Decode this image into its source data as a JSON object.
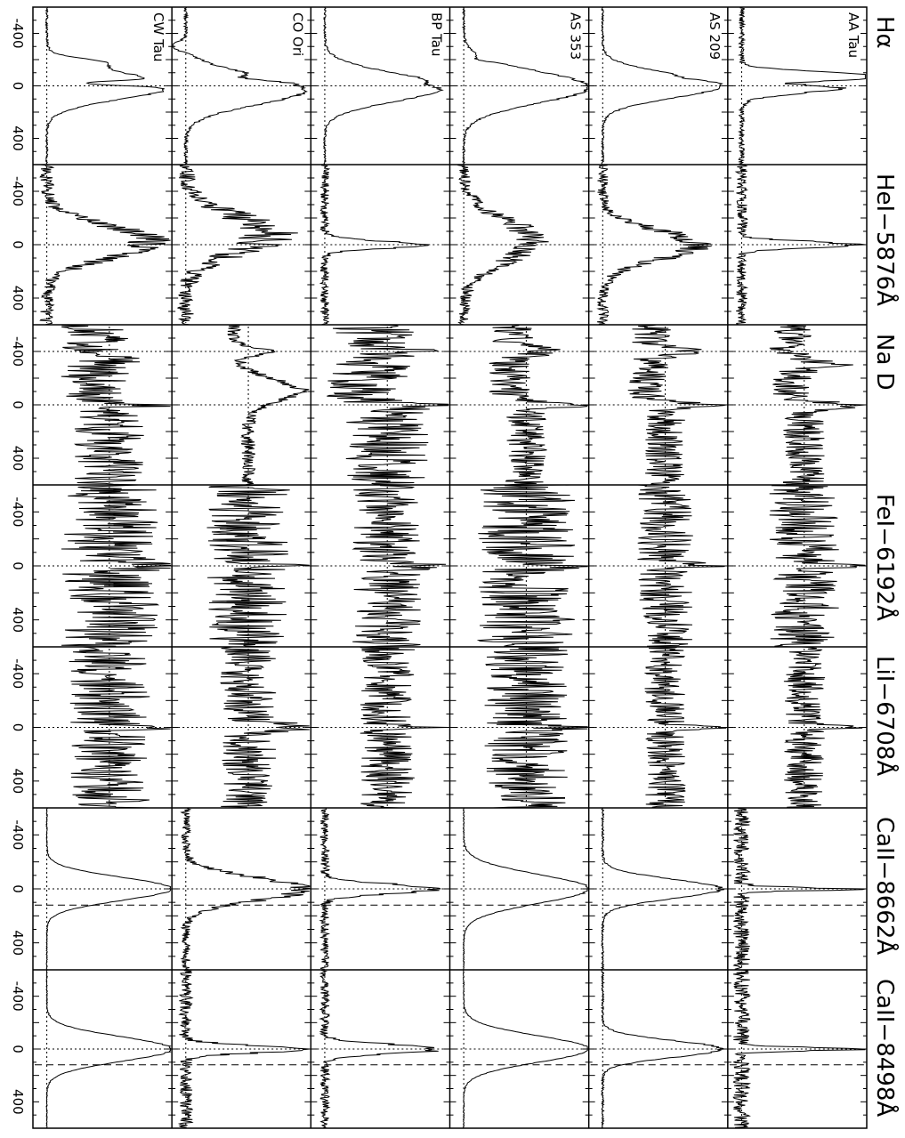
{
  "chart_data": {
    "type": "line",
    "orientation": "rotated-90",
    "x_tick_labels": [
      "-400",
      "0",
      "400"
    ],
    "x_ticks": [
      -400,
      0,
      400
    ],
    "xlim": [
      -600,
      600
    ],
    "x_unit": "",
    "stars": [
      "CW Tau",
      "CO Ori",
      "BP Tau",
      "AS 353",
      "AS 209",
      "AA Tau"
    ],
    "lines": [
      "Hα",
      "HeI−5876Å",
      "Na D",
      "FeI−6192Å",
      "LiI−6708Å",
      "CaII−8662Å",
      "CaII−8498Å"
    ],
    "reference_lines": {
      "zero_velocity": 0,
      "calcium_dashed_offset": 120
    },
    "line_profiles": {
      "Hα": {
        "CW Tau": {
          "kind": "emission",
          "peak": 1.0,
          "width": 140,
          "center": 0,
          "abs_depth": 0.6,
          "abs_at": -20,
          "wing_at": -180,
          "wing": 0.35,
          "noise": 0.02
        },
        "CO Ori": {
          "kind": "emission",
          "peak": 0.95,
          "width": 160,
          "center": 30,
          "abs_depth": 0.2,
          "abs_at": -60,
          "wing_at": -300,
          "wing": -0.3,
          "noise": 0.03
        },
        "BP Tau": {
          "kind": "emission",
          "peak": 0.95,
          "width": 150,
          "center": 10,
          "abs_depth": 0.1,
          "abs_at": -10,
          "wing_at": 0,
          "wing": 0,
          "noise": 0.02
        },
        "AS 353": {
          "kind": "emission",
          "peak": 1.0,
          "width": 170,
          "center": 10,
          "abs_depth": 0.1,
          "abs_at": -200,
          "wing_at": 0,
          "wing": 0,
          "noise": 0.02
        },
        "AS 209": {
          "kind": "emission",
          "peak": 0.95,
          "width": 130,
          "center": 0,
          "abs_depth": 0.1,
          "abs_at": -60,
          "wing_at": 0,
          "wing": 0,
          "noise": 0.02
        },
        "AA Tau": {
          "kind": "emission",
          "peak": 0.9,
          "width": 70,
          "center": 0,
          "abs_depth": 0.5,
          "abs_at": -20,
          "wing_at": -80,
          "wing": 0.85,
          "noise": 0.05
        }
      },
      "HeI−5876Å": {
        "CW Tau": {
          "kind": "emission",
          "peak": 0.85,
          "width": 170,
          "center": -20,
          "abs_depth": 0,
          "abs_at": 0,
          "wing_at": 0,
          "wing": 0,
          "noise": 0.12
        },
        "CO Ori": {
          "kind": "emission",
          "peak": 0.7,
          "width": 200,
          "center": -80,
          "abs_depth": 0,
          "abs_at": 0,
          "wing_at": 0,
          "wing": 0,
          "noise": 0.15
        },
        "BP Tau": {
          "kind": "emission",
          "peak": 0.8,
          "width": 40,
          "center": 0,
          "abs_depth": 0,
          "abs_at": 0,
          "wing_at": 0,
          "wing": 0,
          "noise": 0.08
        },
        "AS 353": {
          "kind": "emission",
          "peak": 0.6,
          "width": 220,
          "center": -30,
          "abs_depth": 0,
          "abs_at": 0,
          "wing_at": 0,
          "wing": 0,
          "noise": 0.1
        },
        "AS 209": {
          "kind": "emission",
          "peak": 0.75,
          "width": 160,
          "center": 0,
          "abs_depth": 0,
          "abs_at": 0,
          "wing_at": 0,
          "wing": 0,
          "noise": 0.1
        },
        "AA Tau": {
          "kind": "emission",
          "peak": 0.9,
          "width": 35,
          "center": 0,
          "abs_depth": 0,
          "abs_at": 0,
          "wing_at": 0,
          "wing": 0,
          "noise": 0.1
        }
      },
      "Na D": {
        "CW Tau": {
          "kind": "absorption",
          "peak": 0.9,
          "width": 25,
          "center": 0,
          "abs_depth": 0.7,
          "abs_at": -360,
          "wing_at": 0,
          "wing": 0,
          "noise": 0.25
        },
        "CO Ori": {
          "kind": "absorption",
          "peak": 0.95,
          "width": 120,
          "center": -120,
          "abs_depth": 0.6,
          "abs_at": -400,
          "wing_at": 0,
          "wing": 0,
          "noise": 0.05
        },
        "BP Tau": {
          "kind": "absorption",
          "peak": 0.95,
          "width": 20,
          "center": 0,
          "abs_depth": 0.9,
          "abs_at": -400,
          "wing_at": 0,
          "wing": 0,
          "noise": 0.3
        },
        "AS 353": {
          "kind": "absorption",
          "peak": 0.95,
          "width": 25,
          "center": 0,
          "abs_depth": 0.8,
          "abs_at": -400,
          "wing_at": 0,
          "wing": 0,
          "noise": 0.15
        },
        "AS 209": {
          "kind": "absorption",
          "peak": 0.95,
          "width": 25,
          "center": 0,
          "abs_depth": 0.85,
          "abs_at": -400,
          "wing_at": 0,
          "wing": 0,
          "noise": 0.15
        },
        "AA Tau": {
          "kind": "absorption",
          "peak": 0.95,
          "width": 30,
          "center": 0,
          "abs_depth": 0.6,
          "abs_at": -300,
          "wing_at": 0,
          "wing": 0,
          "noise": 0.15
        }
      },
      "FeI−6192Å": {
        "CW Tau": {
          "kind": "noisy",
          "peak": 0.9,
          "width": 25,
          "center": 0,
          "abs_depth": 0,
          "abs_at": 0,
          "wing_at": 0,
          "wing": 0,
          "noise": 0.35
        },
        "CO Ori": {
          "kind": "noisy",
          "peak": 0.9,
          "width": 25,
          "center": 0,
          "abs_depth": 0,
          "abs_at": 0,
          "wing_at": 0,
          "wing": 0,
          "noise": 0.3
        },
        "BP Tau": {
          "kind": "noisy",
          "peak": 0.85,
          "width": 25,
          "center": 0,
          "abs_depth": 0,
          "abs_at": 0,
          "wing_at": 0,
          "wing": 0,
          "noise": 0.25
        },
        "AS 353": {
          "kind": "noisy",
          "peak": 0.85,
          "width": 25,
          "center": 0,
          "abs_depth": 0,
          "abs_at": 0,
          "wing_at": 0,
          "wing": 0,
          "noise": 0.35
        },
        "AS 209": {
          "kind": "noisy",
          "peak": 0.9,
          "width": 20,
          "center": 0,
          "abs_depth": 0,
          "abs_at": 0,
          "wing_at": 0,
          "wing": 0,
          "noise": 0.2
        },
        "AA Tau": {
          "kind": "noisy",
          "peak": 0.9,
          "width": 20,
          "center": 0,
          "abs_depth": 0,
          "abs_at": 0,
          "wing_at": 0,
          "wing": 0,
          "noise": 0.25
        }
      },
      "LiI−6708Å": {
        "CW Tau": {
          "kind": "noisy",
          "peak": 0.9,
          "width": 20,
          "center": 0,
          "abs_depth": 0,
          "abs_at": 0,
          "wing_at": 0,
          "wing": 0,
          "noise": 0.3
        },
        "CO Ori": {
          "kind": "noisy",
          "peak": 0.9,
          "width": 40,
          "center": 0,
          "abs_depth": 0,
          "abs_at": 0,
          "wing_at": 0,
          "wing": 0,
          "noise": 0.2
        },
        "BP Tau": {
          "kind": "noisy",
          "peak": 0.95,
          "width": 15,
          "center": 0,
          "abs_depth": 0,
          "abs_at": 0,
          "wing_at": 0,
          "wing": 0,
          "noise": 0.2
        },
        "AS 353": {
          "kind": "noisy",
          "peak": 0.95,
          "width": 15,
          "center": 0,
          "abs_depth": 0,
          "abs_at": 0,
          "wing_at": 0,
          "wing": 0,
          "noise": 0.3
        },
        "AS 209": {
          "kind": "noisy",
          "peak": 0.95,
          "width": 15,
          "center": 0,
          "abs_depth": 0,
          "abs_at": 0,
          "wing_at": 0,
          "wing": 0,
          "noise": 0.15
        },
        "AA Tau": {
          "kind": "noisy",
          "peak": 0.95,
          "width": 15,
          "center": 0,
          "abs_depth": 0,
          "abs_at": 0,
          "wing_at": 0,
          "wing": 0,
          "noise": 0.15
        }
      },
      "CaII−8662Å": {
        "CW Tau": {
          "kind": "emission",
          "peak": 1.0,
          "width": 120,
          "center": 0,
          "abs_depth": 0,
          "abs_at": 0,
          "wing_at": 0,
          "wing": 0,
          "noise": 0.01
        },
        "CO Ori": {
          "kind": "emission",
          "peak": 0.95,
          "width": 120,
          "center": 0,
          "abs_depth": 0,
          "abs_at": 0,
          "wing_at": 0,
          "wing": 0,
          "noise": 0.08
        },
        "BP Tau": {
          "kind": "emission",
          "peak": 0.9,
          "width": 50,
          "center": 0,
          "abs_depth": 0,
          "abs_at": 0,
          "wing_at": 0,
          "wing": 0,
          "noise": 0.08
        },
        "AS 353": {
          "kind": "emission",
          "peak": 1.0,
          "width": 150,
          "center": 0,
          "abs_depth": 0,
          "abs_at": 0,
          "wing_at": 0,
          "wing": 0,
          "noise": 0.01
        },
        "AS 209": {
          "kind": "emission",
          "peak": 0.95,
          "width": 100,
          "center": 0,
          "abs_depth": 0,
          "abs_at": 0,
          "wing_at": 0,
          "wing": 0,
          "noise": 0.02
        },
        "AA Tau": {
          "kind": "emission",
          "peak": 0.9,
          "width": 18,
          "center": 0,
          "abs_depth": 0,
          "abs_at": 0,
          "wing_at": 0,
          "wing": 0,
          "noise": 0.15
        }
      },
      "CaII−8498Å": {
        "CW Tau": {
          "kind": "emission",
          "peak": 1.0,
          "width": 130,
          "center": 0,
          "abs_depth": 0,
          "abs_at": 0,
          "wing_at": 0,
          "wing": 0,
          "noise": 0.01
        },
        "CO Ori": {
          "kind": "emission",
          "peak": 0.95,
          "width": 40,
          "center": 0,
          "abs_depth": 0,
          "abs_at": 0,
          "wing_at": 0,
          "wing": 0,
          "noise": 0.12
        },
        "BP Tau": {
          "kind": "emission",
          "peak": 0.9,
          "width": 50,
          "center": 0,
          "abs_depth": 0,
          "abs_at": 0,
          "wing_at": 0,
          "wing": 0,
          "noise": 0.08
        },
        "AS 353": {
          "kind": "emission",
          "peak": 1.0,
          "width": 140,
          "center": 0,
          "abs_depth": 0,
          "abs_at": 0,
          "wing_at": 0,
          "wing": 0,
          "noise": 0.01
        },
        "AS 209": {
          "kind": "emission",
          "peak": 0.95,
          "width": 90,
          "center": 0,
          "abs_depth": 0,
          "abs_at": 0,
          "wing_at": 0,
          "wing": 0,
          "noise": 0.02
        },
        "AA Tau": {
          "kind": "emission",
          "peak": 0.9,
          "width": 18,
          "center": 0,
          "abs_depth": 0,
          "abs_at": 0,
          "wing_at": 0,
          "wing": 0,
          "noise": 0.15
        }
      }
    },
    "grid": false,
    "colors": {
      "line": "#000000",
      "background": "#ffffff"
    }
  }
}
